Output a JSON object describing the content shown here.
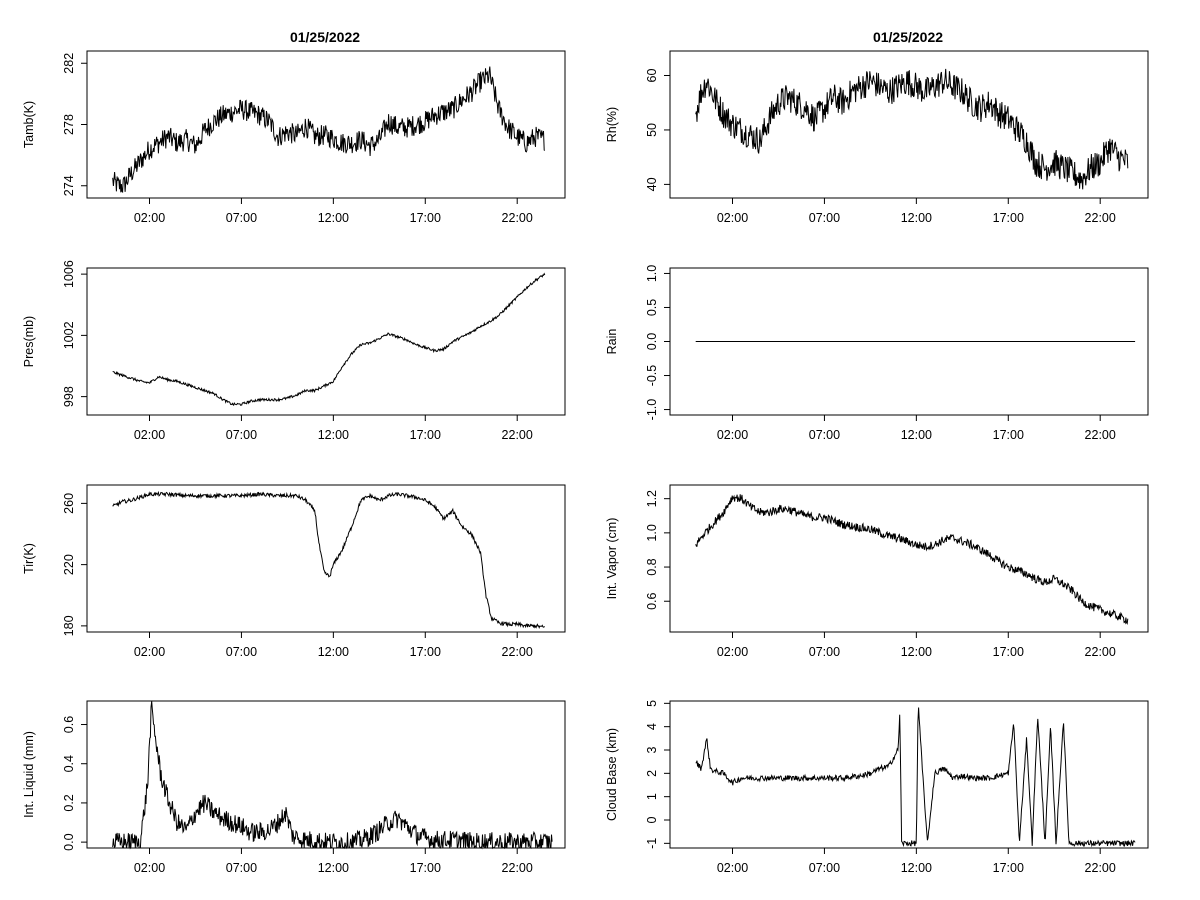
{
  "titles": {
    "left": "01/25/2022",
    "right": "01/25/2022"
  },
  "chart_data": [
    {
      "type": "line",
      "ylabel": "Tamb(K)",
      "yticks": [
        274,
        278,
        282
      ],
      "xticks": [
        "02:00",
        "07:00",
        "12:00",
        "17:00",
        "22:00"
      ],
      "xlim": [
        -1.4,
        24.6
      ],
      "ylim": [
        273.2,
        282.8
      ],
      "noise": 0.7,
      "series": [
        {
          "x": [
            0,
            0.3,
            0.6,
            1,
            1.5,
            2,
            2.5,
            3,
            3.5,
            4,
            4.5,
            5,
            5.5,
            6,
            6.5,
            7,
            7.5,
            8,
            8.5,
            9,
            9.5,
            10,
            10.5,
            11,
            11.5,
            12,
            12.5,
            13,
            13.5,
            14,
            14.5,
            15,
            15.5,
            16,
            16.5,
            17,
            17.5,
            18,
            18.5,
            19,
            19.5,
            20,
            20.5,
            21,
            21.5,
            22,
            22.5,
            23,
            23.5
          ],
          "values": [
            274.3,
            274.0,
            274.0,
            274.8,
            275.6,
            276.4,
            276.8,
            277.2,
            276.8,
            277.0,
            276.6,
            277.6,
            278.2,
            278.6,
            278.8,
            279.0,
            278.8,
            278.6,
            278.2,
            277.2,
            277.5,
            277.3,
            277.9,
            277.2,
            277.3,
            277.1,
            276.8,
            276.8,
            277.0,
            276.6,
            277.0,
            278.2,
            277.8,
            277.8,
            278.0,
            278.2,
            278.6,
            278.8,
            279.0,
            279.6,
            280.1,
            280.8,
            281.2,
            279.0,
            277.8,
            277.2,
            276.8,
            277.2,
            277.0
          ]
        }
      ]
    },
    {
      "type": "line",
      "ylabel": "Rh(%)",
      "yticks": [
        40,
        50,
        60
      ],
      "xticks": [
        "02:00",
        "07:00",
        "12:00",
        "17:00",
        "22:00"
      ],
      "xlim": [
        -1.4,
        24.6
      ],
      "ylim": [
        37.5,
        64.5
      ],
      "noise": 2.6,
      "series": [
        {
          "x": [
            0,
            0.3,
            0.6,
            1,
            1.5,
            2,
            2.5,
            3,
            3.5,
            4,
            4.5,
            5,
            5.5,
            6,
            6.5,
            7,
            7.5,
            8,
            8.5,
            9,
            9.5,
            10,
            10.5,
            11,
            11.5,
            12,
            12.5,
            13,
            13.5,
            14,
            14.5,
            15,
            15.5,
            16,
            16.5,
            17,
            17.5,
            18,
            18.5,
            19,
            19.5,
            20,
            20.5,
            21,
            21.5,
            22,
            22.5,
            23,
            23.5
          ],
          "values": [
            53,
            57,
            59,
            56,
            53,
            51,
            50,
            49,
            48,
            52,
            55,
            56,
            55,
            54,
            52,
            54,
            56,
            55,
            57,
            58,
            59,
            58,
            57,
            58,
            59,
            58,
            57,
            58,
            59,
            58,
            57,
            55,
            54,
            55,
            53,
            52,
            50,
            48,
            44,
            43,
            44,
            43,
            42,
            41,
            43,
            44,
            47,
            45,
            44
          ]
        }
      ]
    },
    {
      "type": "line",
      "ylabel": "Pres(mb)",
      "yticks": [
        998,
        1002,
        1006
      ],
      "xticks": [
        "02:00",
        "07:00",
        "12:00",
        "17:00",
        "22:00"
      ],
      "xlim": [
        -1.4,
        24.6
      ],
      "ylim": [
        996.8,
        1006.4
      ],
      "noise": 0.08,
      "series": [
        {
          "x": [
            0,
            0.5,
            1,
            1.5,
            2,
            2.5,
            3,
            3.5,
            4,
            4.5,
            5,
            5.5,
            6,
            6.5,
            7,
            7.5,
            8,
            8.5,
            9,
            9.5,
            10,
            10.5,
            11,
            11.5,
            12,
            12.5,
            13,
            13.5,
            14,
            14.5,
            15,
            15.5,
            16,
            16.5,
            17,
            17.5,
            18,
            18.5,
            19,
            19.5,
            20,
            20.5,
            21,
            21.5,
            22,
            22.5,
            23,
            23.5
          ],
          "values": [
            999.6,
            999.4,
            999.2,
            999.0,
            998.9,
            999.3,
            999.1,
            999.0,
            998.8,
            998.6,
            998.4,
            998.2,
            997.8,
            997.5,
            997.5,
            997.7,
            997.8,
            997.8,
            997.8,
            997.9,
            998.1,
            998.4,
            998.4,
            998.7,
            999.0,
            1000.0,
            1000.8,
            1001.4,
            1001.5,
            1001.8,
            1002.1,
            1001.9,
            1001.7,
            1001.4,
            1001.2,
            1001.0,
            1001.1,
            1001.6,
            1001.9,
            1002.2,
            1002.6,
            1002.9,
            1003.3,
            1003.9,
            1004.5,
            1005.1,
            1005.6,
            1006.0
          ]
        }
      ]
    },
    {
      "type": "line",
      "ylabel": "Rain",
      "yticks": [
        -1.0,
        -0.5,
        0.0,
        0.5,
        1.0
      ],
      "ytick_labels": [
        "-1.0",
        "-0.5",
        "0.0",
        "0.5",
        "1.0"
      ],
      "xticks": [
        "02:00",
        "07:00",
        "12:00",
        "17:00",
        "22:00"
      ],
      "xlim": [
        -1.4,
        24.6
      ],
      "ylim": [
        -1.08,
        1.08
      ],
      "noise": 0,
      "series": [
        {
          "x": [
            0,
            23.9
          ],
          "values": [
            0,
            0
          ]
        }
      ]
    },
    {
      "type": "line",
      "ylabel": "Tir(K)",
      "yticks": [
        180,
        220,
        260
      ],
      "xticks": [
        "02:00",
        "07:00",
        "12:00",
        "17:00",
        "22:00"
      ],
      "xlim": [
        -1.4,
        24.6
      ],
      "ylim": [
        176,
        272
      ],
      "noise": 1.2,
      "series": [
        {
          "x": [
            0,
            0.5,
            1,
            1.5,
            2,
            3,
            4,
            5,
            6,
            7,
            8,
            9,
            10,
            10.5,
            11,
            11.2,
            11.5,
            11.8,
            12,
            12.5,
            13,
            13.5,
            14,
            14.5,
            15,
            15.5,
            16,
            16.5,
            17,
            17.5,
            18,
            18.5,
            19,
            19.5,
            20,
            20.3,
            20.6,
            21,
            21.5,
            22,
            22.5,
            23,
            23.5
          ],
          "values": [
            258,
            261,
            262,
            264,
            266,
            266,
            265,
            265,
            265,
            265,
            266,
            265,
            265,
            262,
            255,
            235,
            215,
            212,
            220,
            230,
            245,
            262,
            265,
            262,
            265,
            266,
            265,
            264,
            262,
            258,
            250,
            255,
            245,
            240,
            228,
            200,
            185,
            182,
            181,
            181,
            180,
            180,
            179
          ]
        }
      ]
    },
    {
      "type": "line",
      "ylabel": "Int. Vapor (cm)",
      "yticks": [
        0.6,
        0.8,
        1.0,
        1.2
      ],
      "ytick_labels": [
        "0.6",
        "0.8",
        "1.0",
        "1.2"
      ],
      "xticks": [
        "02:00",
        "07:00",
        "12:00",
        "17:00",
        "22:00"
      ],
      "xlim": [
        -1.4,
        24.6
      ],
      "ylim": [
        0.42,
        1.28
      ],
      "noise": 0.025,
      "series": [
        {
          "x": [
            0,
            0.5,
            1,
            1.5,
            2,
            2.5,
            3,
            3.5,
            4,
            4.5,
            5,
            5.5,
            6,
            6.5,
            7,
            7.5,
            8,
            8.5,
            9,
            9.5,
            10,
            10.5,
            11,
            11.5,
            12,
            12.5,
            13,
            13.5,
            14,
            14.5,
            15,
            15.5,
            16,
            16.5,
            17,
            17.5,
            18,
            18.5,
            19,
            19.5,
            20,
            20.5,
            21,
            21.5,
            22,
            22.5,
            23,
            23.5
          ],
          "values": [
            0.93,
            1.0,
            1.06,
            1.12,
            1.21,
            1.2,
            1.15,
            1.12,
            1.12,
            1.14,
            1.14,
            1.12,
            1.1,
            1.09,
            1.09,
            1.07,
            1.05,
            1.04,
            1.03,
            1.02,
            1.0,
            0.98,
            0.97,
            0.95,
            0.93,
            0.92,
            0.93,
            0.96,
            0.97,
            0.95,
            0.93,
            0.9,
            0.87,
            0.83,
            0.8,
            0.78,
            0.76,
            0.73,
            0.71,
            0.73,
            0.7,
            0.66,
            0.6,
            0.57,
            0.55,
            0.53,
            0.51,
            0.49
          ]
        }
      ]
    },
    {
      "type": "line",
      "ylabel": "Int. Liquid (mm)",
      "yticks": [
        0.0,
        0.2,
        0.4,
        0.6
      ],
      "ytick_labels": [
        "0.0",
        "0.2",
        "0.4",
        "0.6"
      ],
      "xticks": [
        "02:00",
        "07:00",
        "12:00",
        "17:00",
        "22:00"
      ],
      "xlim": [
        -1.4,
        24.6
      ],
      "ylim": [
        -0.03,
        0.72
      ],
      "noise": 0.05,
      "series": [
        {
          "x": [
            0,
            1.5,
            1.9,
            2.1,
            2.3,
            2.6,
            3,
            3.5,
            4,
            4.5,
            5,
            5.5,
            6,
            6.5,
            7,
            7.5,
            8,
            8.5,
            9,
            9.4,
            9.8,
            10.5,
            11,
            11.5,
            12,
            12.5,
            13,
            13.5,
            14,
            14.5,
            15,
            15.5,
            16,
            16.5,
            17,
            17.5,
            18,
            18.5,
            19,
            19.5,
            20,
            21,
            22,
            23,
            23.9
          ],
          "values": [
            0,
            0,
            0.3,
            0.68,
            0.55,
            0.35,
            0.22,
            0.1,
            0.06,
            0.15,
            0.2,
            0.15,
            0.12,
            0.1,
            0.08,
            0.05,
            0.05,
            0.06,
            0.1,
            0.15,
            0.03,
            0.01,
            0.01,
            0,
            0,
            0,
            0,
            0.01,
            0.03,
            0.06,
            0.1,
            0.12,
            0.08,
            0.04,
            0.02,
            0.01,
            0.01,
            0.01,
            0.01,
            0,
            0,
            0,
            0,
            0,
            0
          ]
        }
      ]
    },
    {
      "type": "line",
      "ylabel": "Cloud Base (km)",
      "yticks": [
        -1,
        0,
        1,
        2,
        3,
        4,
        5
      ],
      "xticks": [
        "02:00",
        "07:00",
        "12:00",
        "17:00",
        "22:00"
      ],
      "xlim": [
        -1.4,
        24.6
      ],
      "ylim": [
        -1.2,
        5.1
      ],
      "noise": 0.12,
      "series": [
        {
          "x": [
            0,
            0.3,
            0.6,
            0.8,
            1,
            1.5,
            2,
            2.5,
            3,
            4,
            5,
            6,
            7,
            8,
            9,
            9.5,
            10,
            10.5,
            11,
            11.1,
            11.2,
            11.5,
            12,
            12.1,
            12.3,
            12.6,
            13,
            13.5,
            14,
            14.5,
            15,
            16,
            16.5,
            17,
            17.3,
            17.6,
            18,
            18.3,
            18.6,
            19,
            19.3,
            19.6,
            20,
            20.3,
            20.5,
            21,
            22,
            23,
            23.9
          ],
          "values": [
            2.5,
            2.2,
            3.5,
            2.2,
            2.1,
            2.0,
            1.6,
            1.8,
            1.8,
            1.8,
            1.8,
            1.8,
            1.8,
            1.8,
            1.9,
            2.0,
            2.2,
            2.3,
            3.0,
            4.5,
            -1,
            -1,
            -1,
            5.0,
            2.5,
            -1,
            2.0,
            2.2,
            1.8,
            1.9,
            1.8,
            1.8,
            1.9,
            2.0,
            4.2,
            -1,
            3.5,
            -1,
            4.5,
            -1,
            4.0,
            -1,
            4.3,
            -1,
            -1,
            -1,
            -1,
            -1,
            -1
          ]
        }
      ]
    }
  ]
}
